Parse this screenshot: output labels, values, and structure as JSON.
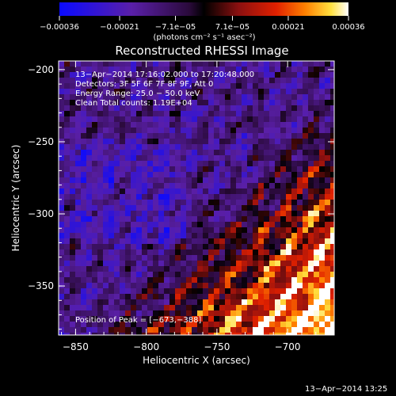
{
  "chart_data": {
    "type": "heatmap",
    "title": "Reconstructed RHESSI Image",
    "xlabel": "Heliocentric X (arcsec)",
    "ylabel": "Heliocentric Y (arcsec)",
    "xlim": [
      -862,
      -667
    ],
    "ylim": [
      -384,
      -194
    ],
    "x_ticks": [
      -850,
      -800,
      -750,
      -700
    ],
    "x_tick_labels": [
      "−850",
      "−800",
      "−750",
      "−700"
    ],
    "y_ticks": [
      -200,
      -250,
      -300,
      -350
    ],
    "y_tick_labels": [
      "−200",
      "−250",
      "−300",
      "−350"
    ],
    "colorbar": {
      "range": [
        -0.00036,
        0.00036
      ],
      "ticks": [
        -0.00036,
        -0.00021,
        -7.1e-05,
        7.1e-05,
        0.00021,
        0.00036
      ],
      "tick_labels": [
        "−0.00036",
        "−0.00021",
        "−7.1e−05",
        "7.1e−05",
        "0.00021",
        "0.00036"
      ],
      "unit_label": "(photons cm⁻² s⁻¹ asec⁻²)",
      "colors": [
        "#0000ff",
        "#5a1fa8",
        "#2a0a3a",
        "#000000",
        "#8b1010",
        "#e02000",
        "#ff7000",
        "#ffd000",
        "#ffffff"
      ]
    },
    "annotations": [
      "13−Apr−2014 17:16:02.000 to 17:20:48.000",
      "Detectors: 3F 5F 6F 7F 8F 9F, Att 0",
      "Energy Range: 25.0 − 50.0 keV",
      "Clean     Total counts: 1.19E+04"
    ],
    "peak_label": "Position of Peak = [−673,−388]",
    "peak": [
      -673,
      -388
    ],
    "timestamp": "13−Apr−2014 13:25"
  }
}
